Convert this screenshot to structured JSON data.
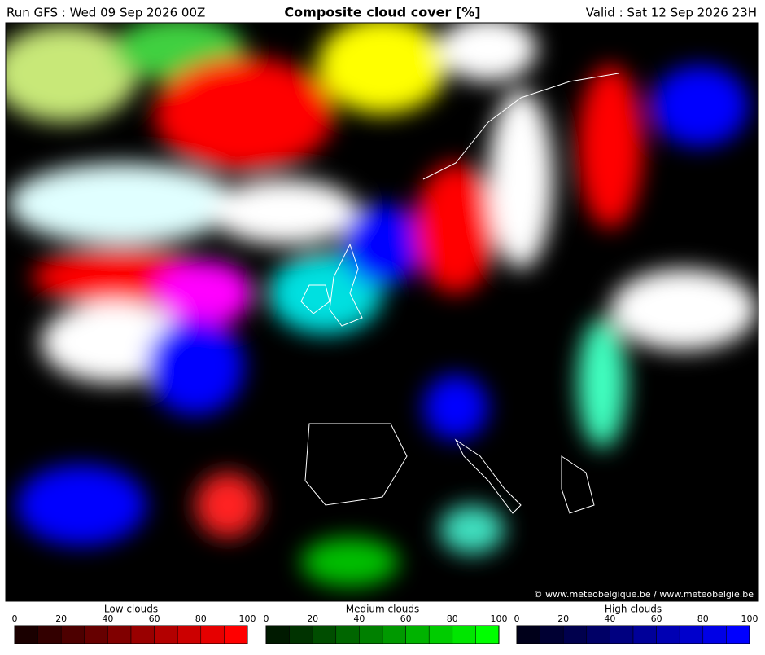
{
  "header": {
    "run": "Run GFS : Wed 09 Sep 2026 00Z",
    "title": "Composite cloud cover [%]",
    "valid": "Valid : Sat 12 Sep 2026 23H"
  },
  "copyright": "© www.meteobelgique.be / www.meteobelgie.be",
  "legends": [
    {
      "label": "Low clouds",
      "ticks": [
        0,
        20,
        40,
        60,
        80,
        100
      ],
      "colors": [
        "#1a0000",
        "#330000",
        "#4d0000",
        "#660000",
        "#800000",
        "#990000",
        "#b30000",
        "#cc0000",
        "#e60000",
        "#ff0000"
      ]
    },
    {
      "label": "Medium clouds",
      "ticks": [
        0,
        20,
        40,
        60,
        80,
        100
      ],
      "colors": [
        "#001a00",
        "#003300",
        "#004d00",
        "#006600",
        "#008000",
        "#009900",
        "#00b300",
        "#00cc00",
        "#00e600",
        "#00ff00"
      ]
    },
    {
      "label": "High clouds",
      "ticks": [
        0,
        20,
        40,
        60,
        80,
        100
      ],
      "colors": [
        "#00001a",
        "#000033",
        "#00004d",
        "#000066",
        "#000080",
        "#000099",
        "#0000b3",
        "#0000cc",
        "#0000e6",
        "#0000ff"
      ]
    }
  ]
}
